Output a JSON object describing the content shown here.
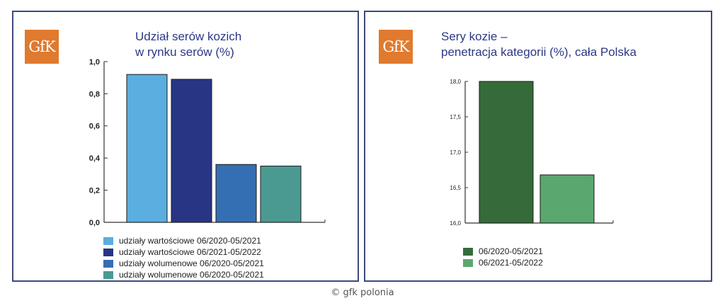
{
  "charts": [
    {
      "logo_text": "GfK",
      "title_lines": [
        "Udział serów kozich",
        "w rynku serów (%)"
      ],
      "chart_data": {
        "type": "bar",
        "categories": [
          "udziały wartościowe 06/2020-05/2021",
          "udziały wartościowe 06/2021-05/2022",
          "udziały wolumenowe 06/2020-05/2021",
          "udziały wolumenowe 06/2020-05/2021"
        ],
        "values": [
          0.92,
          0.89,
          0.36,
          0.35
        ],
        "colors": [
          "#5aaee0",
          "#283585",
          "#356fb3",
          "#4b9a92"
        ],
        "ylim": [
          0.0,
          1.0
        ],
        "yticks": [
          "0,0",
          "0,2",
          "0,4",
          "0,6",
          "0,8",
          "1,0"
        ],
        "ytick_values": [
          0.0,
          0.2,
          0.4,
          0.6,
          0.8,
          1.0
        ],
        "legend": "bottom-left",
        "grid": false
      }
    },
    {
      "logo_text": "GfK",
      "title_lines": [
        "Sery kozie –",
        "penetracja kategorii (%), cała Polska"
      ],
      "chart_data": {
        "type": "bar",
        "categories": [
          "06/2020-05/2021",
          "06/2021-05/2022"
        ],
        "values": [
          18.0,
          16.68
        ],
        "colors": [
          "#356b3a",
          "#5aa76f"
        ],
        "ylim": [
          16.0,
          18.0
        ],
        "yticks": [
          "16,0",
          "16,5",
          "17,0",
          "17,5",
          "18,0"
        ],
        "ytick_values": [
          16.0,
          16.5,
          17.0,
          17.5,
          18.0
        ],
        "legend": "bottom-left",
        "grid": false
      }
    }
  ],
  "footer": "© gfk polonia"
}
